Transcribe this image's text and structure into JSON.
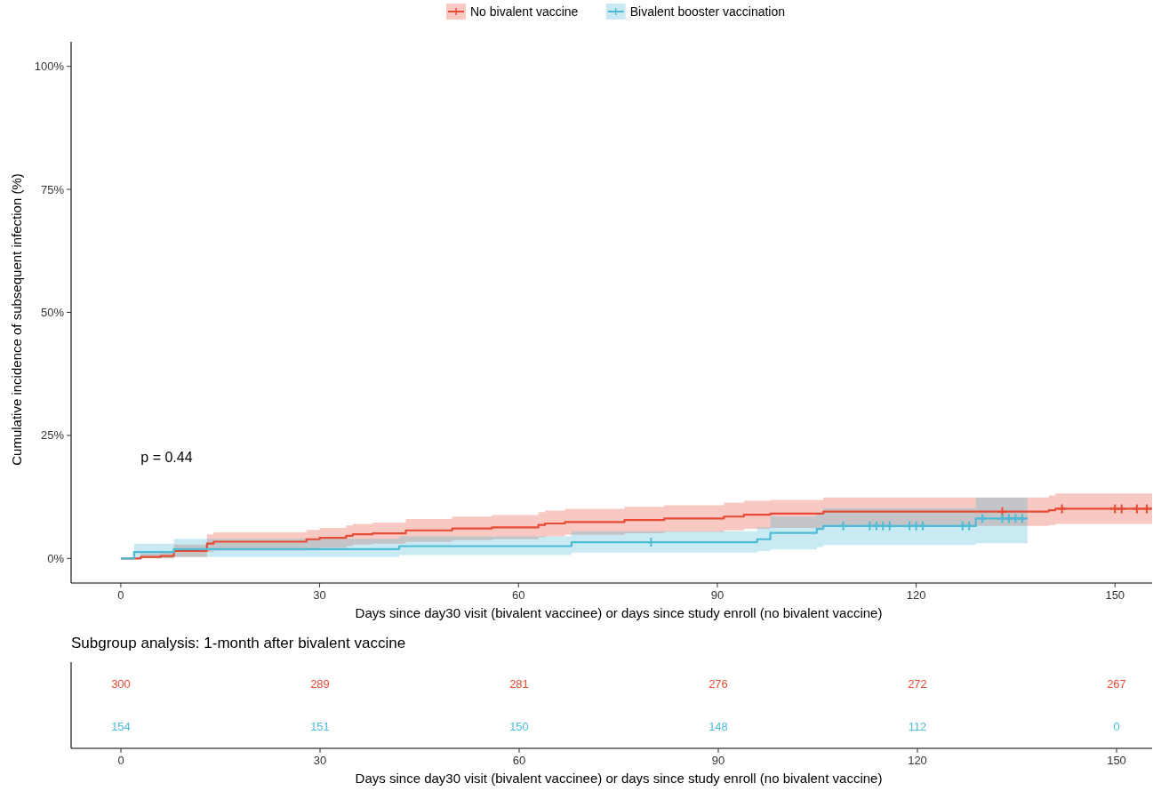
{
  "chart_data": [
    {
      "type": "step",
      "xlabel": "Days since day30 visit (bivalent vaccinee) or days since study enroll (no bivalent vaccine)",
      "ylabel": "Cumulative incidence of subsequent infection (%)",
      "xlim": [
        -7.5,
        155.6
      ],
      "xticks": [
        0,
        30,
        60,
        90,
        120,
        150
      ],
      "ylim": [
        -5,
        105
      ],
      "yticks": [
        {
          "value": 0,
          "label": "0%"
        },
        {
          "value": 25,
          "label": "25%"
        },
        {
          "value": 50,
          "label": "50%"
        },
        {
          "value": 75,
          "label": "75%"
        },
        {
          "value": 100,
          "label": "100%"
        }
      ],
      "legend": "top",
      "grid": false,
      "annotations": [
        "p = 0.44"
      ],
      "series": [
        {
          "name": "No bivalent vaccine",
          "color": "#e64b35",
          "x": [
            0,
            3,
            6,
            8,
            13,
            14,
            28,
            30,
            34,
            35,
            38,
            43,
            50,
            56,
            63,
            64,
            67,
            76,
            82,
            91,
            94,
            98,
            106,
            140,
            141,
            155.6
          ],
          "values": [
            0,
            0.3,
            0.5,
            1.5,
            3.0,
            3.4,
            3.9,
            4.2,
            4.6,
            4.9,
            5.1,
            5.7,
            6.1,
            6.3,
            6.8,
            7.1,
            7.4,
            7.8,
            8.1,
            8.5,
            8.9,
            9.1,
            9.5,
            9.8,
            10.1,
            10.1
          ],
          "lower": [
            0,
            0,
            0,
            0.3,
            1.3,
            1.6,
            2.0,
            2.2,
            2.5,
            2.8,
            3.0,
            3.4,
            3.7,
            3.9,
            4.3,
            4.5,
            4.8,
            5.1,
            5.4,
            5.7,
            6.0,
            6.2,
            6.6,
            6.8,
            7.0,
            7.0
          ],
          "upper": [
            0,
            1.0,
            1.4,
            2.8,
            4.9,
            5.3,
            5.8,
            6.2,
            6.7,
            7.0,
            7.3,
            8.0,
            8.5,
            8.8,
            9.4,
            9.7,
            10.1,
            10.5,
            10.8,
            11.3,
            11.7,
            11.9,
            12.4,
            12.8,
            13.2,
            13.2
          ]
        },
        {
          "name": "Bivalent booster vaccination",
          "color": "#4dbbd5",
          "x": [
            0,
            2,
            8,
            42,
            68,
            96,
            98,
            105,
            106,
            129,
            136.8
          ],
          "values": [
            0,
            1.3,
            1.9,
            2.5,
            3.3,
            3.9,
            5.2,
            6.0,
            6.6,
            8.1,
            8.1
          ],
          "lower": [
            0,
            0,
            0.3,
            0.7,
            1.2,
            1.5,
            1.8,
            2.3,
            2.7,
            3.1,
            3.1
          ],
          "upper": [
            0,
            3.0,
            4.0,
            4.5,
            5.5,
            6.3,
            8.5,
            9.3,
            10.2,
            12.3,
            12.3
          ]
        },
        {
          "type": "scatter",
          "marker": "cross",
          "color": "#e64b35",
          "x": [
            133,
            142,
            150,
            151,
            153.3,
            154.8
          ],
          "values": [
            9.5,
            10.1,
            10.1,
            10.1,
            10.1,
            10.1
          ]
        },
        {
          "type": "scatter",
          "marker": "cross",
          "color": "#4dbbd5",
          "x": [
            80,
            109,
            113,
            114,
            115,
            116,
            119,
            120,
            121,
            127,
            128,
            130,
            133,
            134,
            135,
            136
          ],
          "values": [
            3.3,
            6.6,
            6.6,
            6.6,
            6.6,
            6.6,
            6.6,
            6.6,
            6.6,
            6.6,
            6.6,
            8.1,
            8.1,
            8.1,
            8.1,
            8.1
          ]
        }
      ]
    },
    {
      "type": "heatmap",
      "title": "Subgroup analysis: 1-month after bivalent vaccine",
      "xlabel": "Days since day30 visit (bivalent vaccinee) or days since study enroll (no bivalent vaccine)",
      "categories": [
        "0",
        "30",
        "60",
        "90",
        "120",
        "150"
      ],
      "y_categories": [
        null,
        null
      ],
      "colors": [
        "#e64b35",
        "#4dbbd5"
      ],
      "data_labels": true,
      "cells": [
        [
          300,
          289,
          281,
          276,
          272,
          267
        ],
        [
          154,
          151,
          150,
          148,
          112,
          0
        ]
      ]
    }
  ]
}
